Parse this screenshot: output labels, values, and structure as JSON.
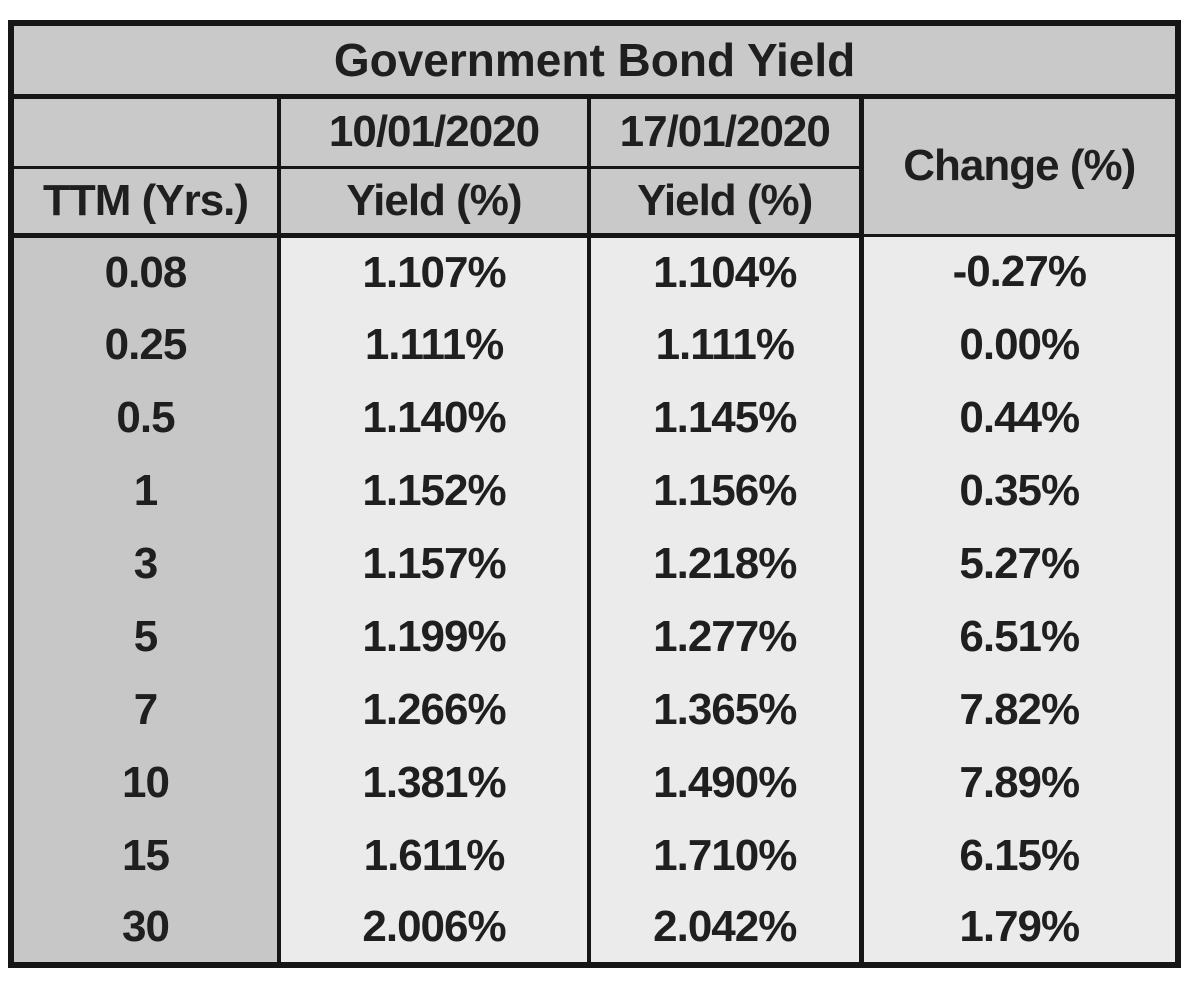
{
  "title": "Government Bond Yield",
  "columns": {
    "ttm": "TTM (Yrs.)",
    "date1": "10/01/2020",
    "date2": "17/01/2020",
    "yield1": "Yield (%)",
    "yield2": "Yield (%)",
    "change": "Change (%)"
  },
  "rows": [
    {
      "ttm": "0.08",
      "y1": "1.107%",
      "y2": "1.104%",
      "chg": "-0.27%"
    },
    {
      "ttm": "0.25",
      "y1": "1.111%",
      "y2": "1.111%",
      "chg": "0.00%"
    },
    {
      "ttm": "0.5",
      "y1": "1.140%",
      "y2": "1.145%",
      "chg": "0.44%"
    },
    {
      "ttm": "1",
      "y1": "1.152%",
      "y2": "1.156%",
      "chg": "0.35%"
    },
    {
      "ttm": "3",
      "y1": "1.157%",
      "y2": "1.218%",
      "chg": "5.27%"
    },
    {
      "ttm": "5",
      "y1": "1.199%",
      "y2": "1.277%",
      "chg": "6.51%"
    },
    {
      "ttm": "7",
      "y1": "1.266%",
      "y2": "1.365%",
      "chg": "7.82%"
    },
    {
      "ttm": "10",
      "y1": "1.381%",
      "y2": "1.490%",
      "chg": "7.89%"
    },
    {
      "ttm": "15",
      "y1": "1.611%",
      "y2": "1.710%",
      "chg": "6.15%"
    },
    {
      "ttm": "30",
      "y1": "2.006%",
      "y2": "2.042%",
      "chg": "1.79%"
    }
  ],
  "colors": {
    "header_bg": "#c9c9c9",
    "label_column_bg": "#c7c7c7",
    "cell_bg": "#ebebeb",
    "border": "#161616",
    "text": "#1f1f1f"
  },
  "chart_data": {
    "type": "table",
    "title": "Government Bond Yield",
    "columns": [
      "TTM (Yrs.)",
      "Yield (%) 10/01/2020",
      "Yield (%) 17/01/2020",
      "Change (%)"
    ],
    "ttm_years": [
      0.08,
      0.25,
      0.5,
      1,
      3,
      5,
      7,
      10,
      15,
      30
    ],
    "yield_10_01_2020_pct": [
      1.107,
      1.111,
      1.14,
      1.152,
      1.157,
      1.199,
      1.266,
      1.381,
      1.611,
      2.006
    ],
    "yield_17_01_2020_pct": [
      1.104,
      1.111,
      1.145,
      1.156,
      1.218,
      1.277,
      1.365,
      1.49,
      1.71,
      2.042
    ],
    "change_pct": [
      -0.27,
      0.0,
      0.44,
      0.35,
      5.27,
      6.51,
      7.82,
      7.89,
      6.15,
      1.79
    ]
  }
}
